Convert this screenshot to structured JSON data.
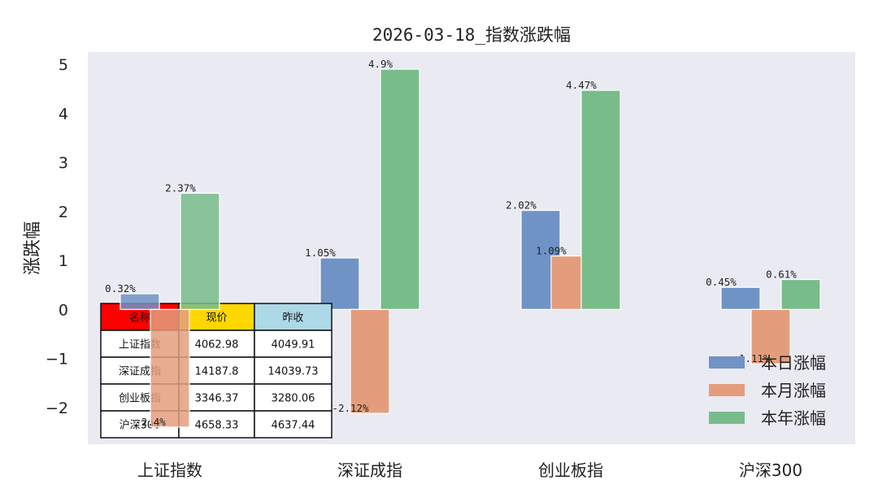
{
  "chart_data": {
    "type": "bar",
    "title": "2026-03-18_指数涨跌幅",
    "xlabel": "",
    "ylabel": "涨跌幅",
    "categories": [
      "上证指数",
      "深证成指",
      "创业板指",
      "沪深300"
    ],
    "series": [
      {
        "name": "本日涨幅",
        "values": [
          0.32,
          1.05,
          2.02,
          0.45
        ],
        "labels": [
          "0.32%",
          "1.05%",
          "2.02%",
          "0.45%"
        ],
        "color": "#7093c6"
      },
      {
        "name": "本月涨幅",
        "values": [
          -2.4,
          -2.12,
          1.09,
          -1.11
        ],
        "labels": [
          "-2.4%",
          "-2.12%",
          "1.09%",
          "-1.11%"
        ],
        "color": "#e49d7c"
      },
      {
        "name": "本年涨幅",
        "values": [
          2.37,
          4.9,
          4.47,
          0.61
        ],
        "labels": [
          "2.37%",
          "4.9%",
          "4.47%",
          "0.61%"
        ],
        "color": "#78bc8a"
      }
    ],
    "yticks": [
      "−2",
      "−1",
      "0",
      "1",
      "2",
      "3",
      "4",
      "5"
    ],
    "ylim": [
      -2.75,
      5.25
    ],
    "grid": false,
    "legend_position": "lower-right",
    "plot_background": "#eaeaf2",
    "table": {
      "headers": [
        "名称",
        "现价",
        "昨收"
      ],
      "header_colors": [
        "#ff0000",
        "#ffd700",
        "#add8e6"
      ],
      "rows": [
        [
          "上证指数",
          "4062.98",
          "4049.91"
        ],
        [
          "深证成指",
          "14187.8",
          "14039.73"
        ],
        [
          "创业板指",
          "3346.37",
          "3280.06"
        ],
        [
          "沪深300",
          "4658.33",
          "4637.44"
        ]
      ]
    }
  }
}
